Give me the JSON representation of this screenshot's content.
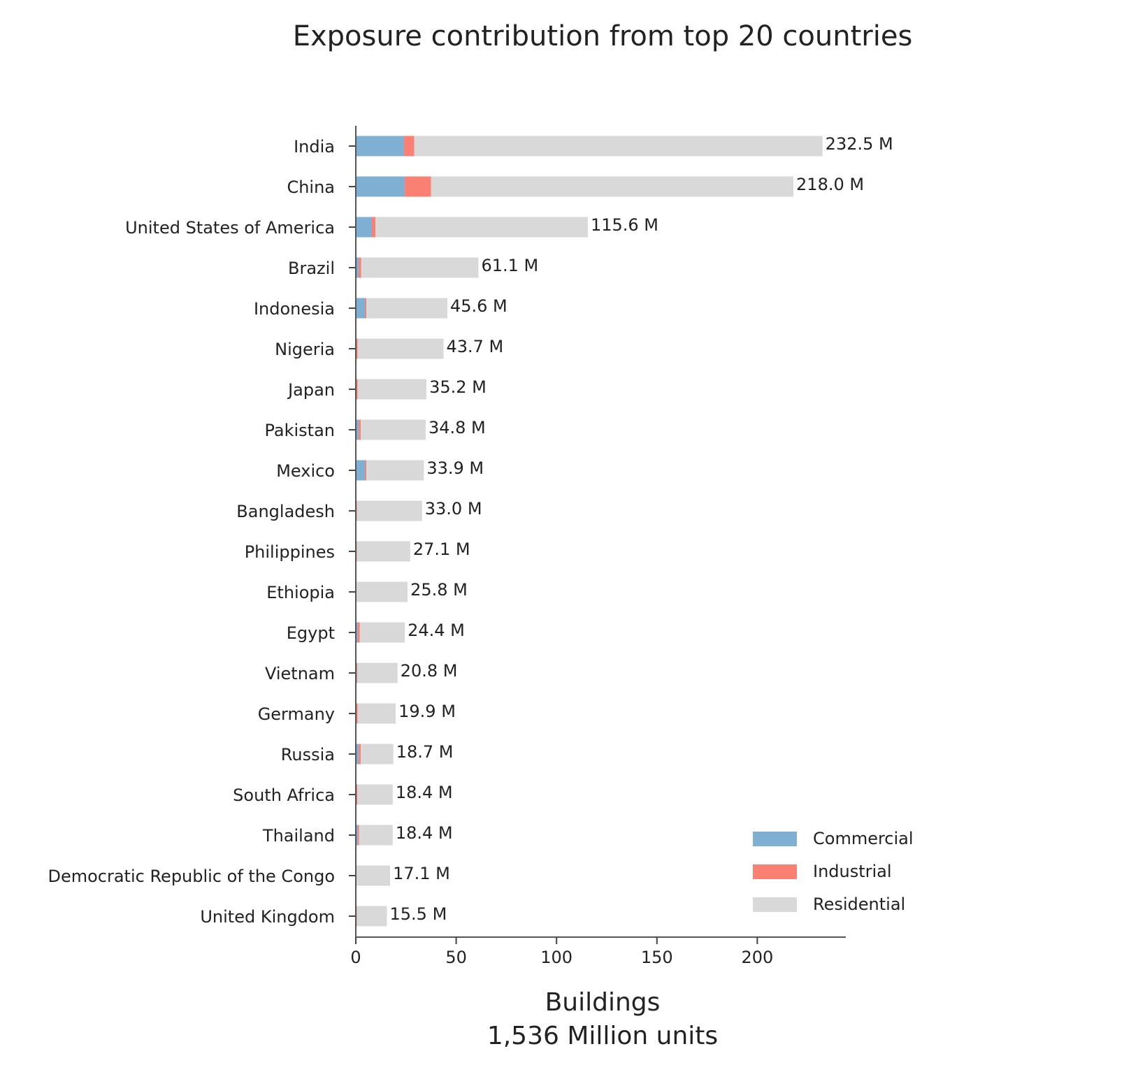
{
  "chart_data": {
    "type": "stacked-barh",
    "title": "Exposure contribution from top 20 countries",
    "xlabel": [
      "Buildings",
      "1,536 Million units"
    ],
    "categories": [
      "India",
      "China",
      "United States of America",
      "Brazil",
      "Indonesia",
      "Nigeria",
      "Japan",
      "Pakistan",
      "Mexico",
      "Bangladesh",
      "Philippines",
      "Ethiopia",
      "Egypt",
      "Vietnam",
      "Germany",
      "Russia",
      "South Africa",
      "Thailand",
      "Democratic Republic of the Congo",
      "United Kingdom"
    ],
    "series": [
      {
        "name": "Commercial",
        "color": "#7fafd3",
        "values": [
          24.0,
          24.4,
          8.0,
          1.5,
          4.7,
          0.3,
          0.3,
          1.5,
          4.7,
          0.3,
          0.4,
          0.2,
          1.0,
          0.5,
          0.3,
          1.5,
          0.3,
          1.0,
          0.2,
          0.3
        ]
      },
      {
        "name": "Industrial",
        "color": "#f98072",
        "values": [
          5.1,
          13.1,
          1.8,
          1.2,
          0.6,
          0.6,
          0.6,
          1.0,
          0.6,
          0.3,
          0.2,
          0.1,
          1.0,
          0.3,
          0.6,
          1.0,
          0.5,
          0.6,
          0.1,
          0.2
        ]
      },
      {
        "name": "Residential",
        "color": "#d9d9d9",
        "values": [
          203.4,
          180.5,
          105.8,
          58.4,
          40.3,
          42.8,
          34.3,
          32.3,
          28.6,
          32.4,
          26.5,
          25.5,
          22.4,
          20.0,
          19.0,
          16.2,
          17.6,
          16.8,
          16.8,
          15.0
        ]
      }
    ],
    "totals": {
      "values": [
        232.5,
        218.0,
        115.6,
        61.1,
        45.6,
        43.7,
        35.2,
        34.8,
        33.9,
        33.0,
        27.1,
        25.8,
        24.4,
        20.8,
        19.9,
        18.7,
        18.4,
        18.4,
        17.1,
        15.5
      ],
      "value_labels": [
        "232.5 M",
        "218.0 M",
        "115.6 M",
        "61.1 M",
        "45.6 M",
        "43.7 M",
        "35.2 M",
        "34.8 M",
        "33.9 M",
        "33.0 M",
        "27.1 M",
        "25.8 M",
        "24.4 M",
        "20.8 M",
        "19.9 M",
        "18.7 M",
        "18.4 M",
        "18.4 M",
        "17.1 M",
        "15.5 M"
      ]
    },
    "xlim": [
      0,
      244.1
    ],
    "xticks": [
      0,
      50,
      100,
      150,
      200
    ],
    "legend": "lower right"
  }
}
